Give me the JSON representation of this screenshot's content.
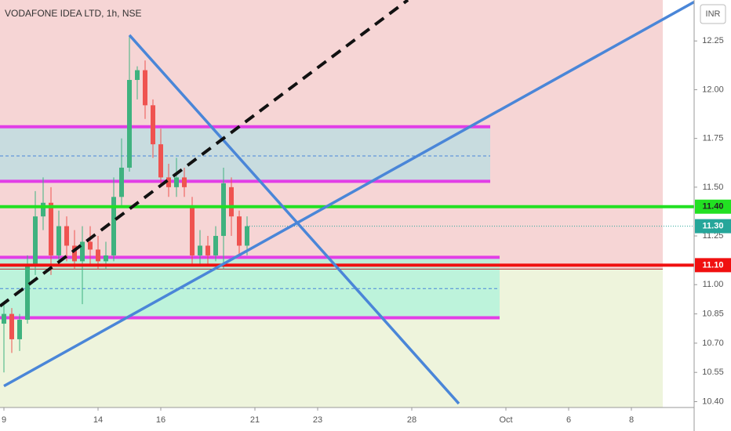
{
  "chart_data": {
    "type": "candlestick",
    "title": "VODAFONE IDEA LTD, 1h, NSE",
    "currency": "INR",
    "xlim": [
      -0.125,
      22
    ],
    "ylim": [
      10.37,
      12.46
    ],
    "xticks": [
      {
        "value": 0,
        "label": "9"
      },
      {
        "value": 3,
        "label": "14"
      },
      {
        "value": 5,
        "label": "16"
      },
      {
        "value": 8,
        "label": "21"
      },
      {
        "value": 10,
        "label": "23"
      },
      {
        "value": 13,
        "label": "28"
      },
      {
        "value": 16,
        "label": "Oct"
      },
      {
        "value": 18,
        "label": "6"
      },
      {
        "value": 20,
        "label": "8"
      }
    ],
    "yticks": [
      12.25,
      {
        "value": 12,
        "label": "12.00"
      },
      11.75,
      {
        "value": 11.5,
        "label": "11.50"
      },
      11.25,
      {
        "value": 11,
        "label": "11.00"
      },
      10.85,
      {
        "value": 10.7,
        "label": "10.70"
      },
      10.55,
      {
        "value": 10.4,
        "label": "10.40"
      }
    ],
    "up_color": "#3fb27f",
    "down_color": "#ef5350",
    "x": [
      0,
      0.25,
      0.5,
      0.75,
      1,
      1.25,
      1.5,
      1.75,
      2,
      2.25,
      2.5,
      2.75,
      3,
      3.25,
      3.5,
      3.75,
      4,
      4.25,
      4.5,
      4.75,
      5,
      5.25,
      5.5,
      5.75,
      6,
      6.25,
      6.5,
      6.75,
      7,
      7.25,
      7.5,
      7.75
    ],
    "open": [
      10.8,
      10.85,
      10.72,
      10.82,
      11.1,
      11.35,
      11.42,
      11.15,
      11.3,
      11.2,
      11.12,
      11.22,
      11.18,
      11.12,
      11.15,
      11.45,
      11.6,
      12.05,
      12.1,
      11.92,
      11.72,
      11.55,
      11.5,
      11.55,
      11.4,
      11.15,
      11.2,
      11.15,
      11.25,
      11.5,
      11.35,
      11.2
    ],
    "high": [
      10.9,
      10.88,
      10.85,
      11.15,
      11.48,
      11.55,
      11.5,
      11.38,
      11.35,
      11.28,
      11.3,
      11.3,
      11.25,
      11.22,
      11.55,
      11.75,
      12.27,
      12.12,
      12.15,
      11.95,
      11.8,
      11.62,
      11.65,
      11.6,
      11.45,
      11.28,
      11.25,
      11.3,
      11.6,
      11.55,
      11.38,
      11.35
    ],
    "low": [
      10.55,
      10.65,
      10.66,
      10.8,
      11.05,
      11.28,
      11.05,
      11.1,
      11.12,
      11.08,
      10.9,
      11.1,
      11.08,
      11.08,
      11.12,
      11.4,
      11.58,
      11.95,
      11.85,
      11.65,
      11.5,
      11.45,
      11.45,
      11.45,
      11.1,
      11.1,
      11.1,
      11.12,
      11.08,
      11.25,
      11.15,
      11.15
    ],
    "close": [
      10.85,
      10.72,
      10.82,
      11.1,
      11.35,
      11.42,
      11.15,
      11.3,
      11.2,
      11.12,
      11.22,
      11.18,
      11.12,
      11.15,
      11.45,
      11.6,
      12.05,
      12.1,
      11.92,
      11.72,
      11.55,
      11.5,
      11.55,
      11.5,
      11.15,
      11.2,
      11.15,
      11.25,
      11.52,
      11.35,
      11.2,
      11.3
    ],
    "background": {
      "entry": 11.08,
      "x_end": 21,
      "above_color": "#f6d5d5",
      "below_color": "#eef4dc",
      "entry_color": "#b03030"
    },
    "zones": [
      {
        "top": 11.81,
        "bottom": 11.53,
        "mid": 11.66,
        "x0": -0.125,
        "x1": 15.5,
        "fill": "#bfdde0",
        "border": "#e23ee6"
      },
      {
        "top": 11.14,
        "bottom": 10.83,
        "mid": 10.98,
        "x0": -0.125,
        "x1": 15.8,
        "fill": "#b4f2da",
        "border": "#e23ee6"
      }
    ],
    "hlines": [
      {
        "value": 11.4,
        "label": "11.40",
        "color": "#22e022",
        "x0": -0.125
      },
      {
        "value": 11.1,
        "label": "11.10",
        "color": "#f01010",
        "x0": -0.125
      },
      {
        "value": 11.3,
        "label": "11.30",
        "color": "#26a69a",
        "x0": 7.75
      }
    ],
    "trendlines": [
      {
        "x": [
          0,
          22
        ],
        "y": [
          10.48,
          12.45
        ],
        "color": "#4a86d8",
        "dashed": false
      },
      {
        "x": [
          4,
          14.5
        ],
        "y": [
          12.28,
          10.39
        ],
        "color": "#4a86d8",
        "dashed": false
      },
      {
        "x": [
          -0.125,
          12.875
        ],
        "y": [
          10.89,
          12.46
        ],
        "color": "#111111",
        "dashed": true
      }
    ]
  }
}
